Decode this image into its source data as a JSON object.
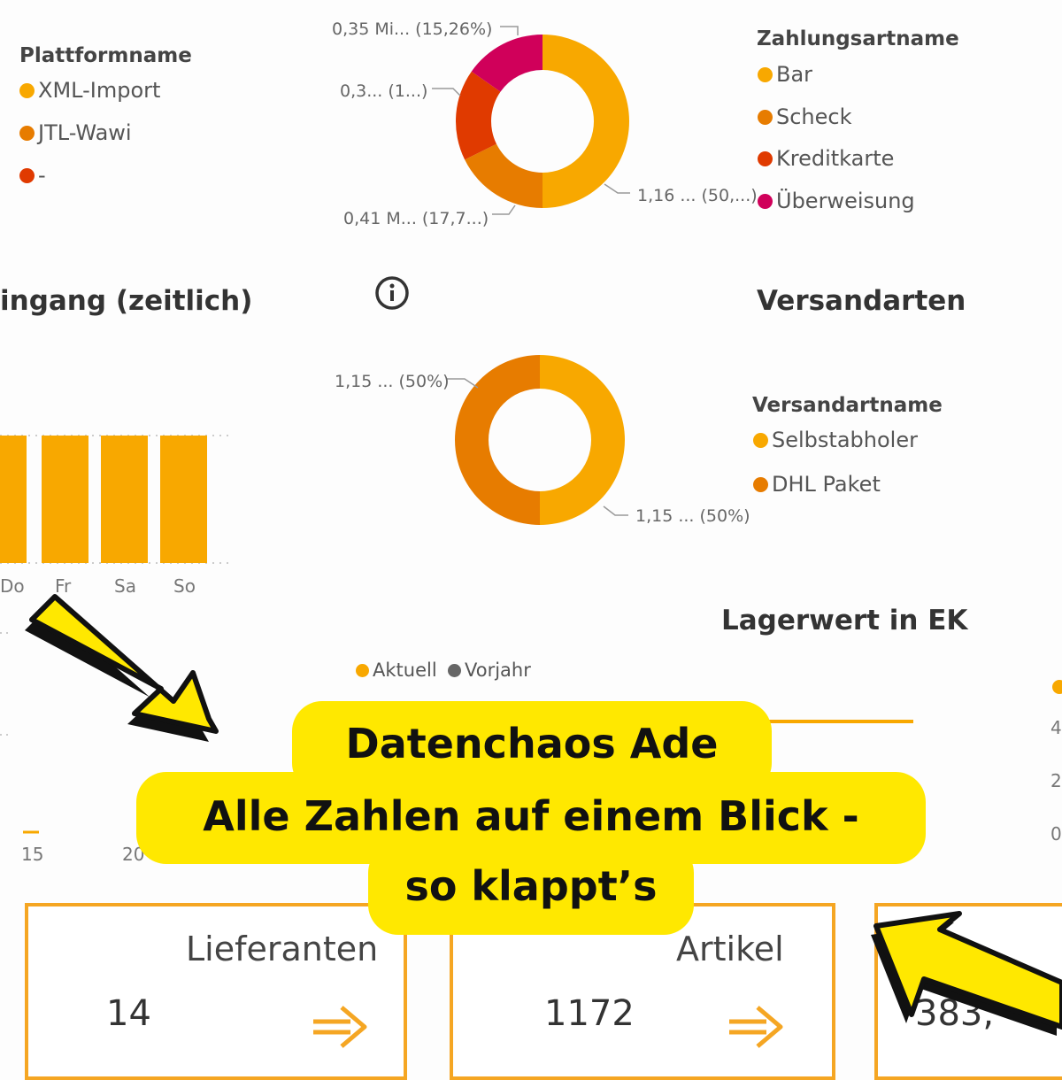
{
  "colors": {
    "orange": "#f8a800",
    "dark_orange": "#e77c00",
    "red": "#e03a00",
    "magenta": "#d0005a",
    "grey": "#666666",
    "highlight": "#ffe800",
    "card_border": "#f5a623"
  },
  "platform_legend": {
    "title": "Plattformname",
    "items": [
      {
        "label": "XML-Import",
        "color": "#f8a800"
      },
      {
        "label": "JTL-Wawi",
        "color": "#e77c00"
      },
      {
        "label": "-",
        "color": "#e03a00"
      }
    ]
  },
  "payment_chart": {
    "legend_title": "Zahlungsartname",
    "legend_items": [
      {
        "label": "Bar",
        "color": "#f8a800"
      },
      {
        "label": "Scheck",
        "color": "#e77c00"
      },
      {
        "label": "Kreditkarte",
        "color": "#e03a00"
      },
      {
        "label": "Überweisung",
        "color": "#d0005a"
      }
    ],
    "labels": {
      "bar": "1,16 ... (50,...)",
      "scheck": "0,41 M... (17,7...)",
      "kreditkarte": "0,3... (1...)",
      "ueberweisung": "0,35 Mi... (15,26%)"
    }
  },
  "order_chart": {
    "title": "ingang (zeitlich)",
    "info_icon": "info-icon",
    "day_labels": [
      "Do",
      "Fr",
      "Sa",
      "So"
    ]
  },
  "shipping_chart": {
    "title": "Versandarten",
    "legend_title": "Versandartname",
    "legend_items": [
      {
        "label": "Selbstabholer",
        "color": "#f8a800"
      },
      {
        "label": "DHL Paket",
        "color": "#e77c00"
      }
    ],
    "labels": {
      "selbstabholer": "1,15 ... (50%)",
      "dhl": "1,15 ... (50%)"
    }
  },
  "stock_chart": {
    "title": "Lagerwert in EK",
    "legend_items": [
      {
        "label": "Aktuell",
        "color": "#f8a800"
      },
      {
        "label": "Vorjahr",
        "color": "#666666"
      }
    ]
  },
  "lower_axis": {
    "x_ticks": [
      "15",
      "20"
    ],
    "right_ticks": [
      "4",
      "2",
      "0"
    ]
  },
  "cards": [
    {
      "title": "Lieferanten",
      "value": "14"
    },
    {
      "title": "Artikel",
      "value": "1172"
    },
    {
      "title": "",
      "value": "383,"
    }
  ],
  "banner": {
    "line1": "Datenchaos Ade",
    "line2": "Alle Zahlen auf einem Blick -",
    "line3": "so klappt’s"
  },
  "chart_data": [
    {
      "type": "pie",
      "title": "",
      "legend": "Zahlungsartname",
      "categories": [
        "Bar",
        "Scheck",
        "Kreditkarte",
        "Überweisung"
      ],
      "values": [
        50,
        17.7,
        17.04,
        15.26
      ]
    },
    {
      "type": "pie",
      "title": "Versandarten",
      "legend": "Versandartname",
      "categories": [
        "Selbstabholer",
        "DHL Paket"
      ],
      "values": [
        50,
        50
      ]
    }
  ]
}
